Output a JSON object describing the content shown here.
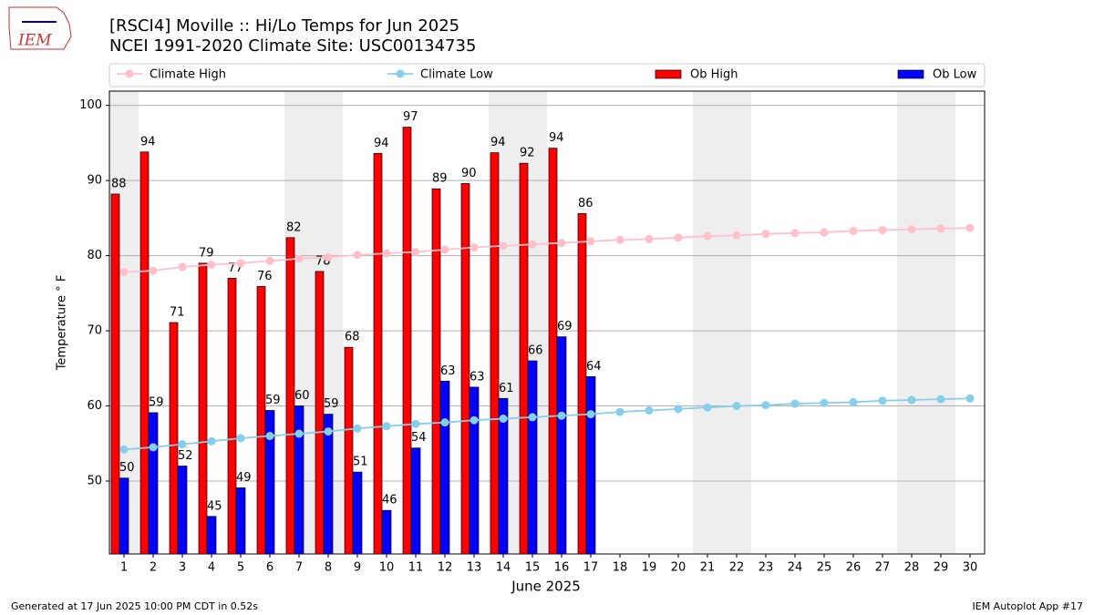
{
  "logo": "IEM",
  "footer_left": "Generated at 17 Jun 2025 10:00 PM CDT in 0.52s",
  "footer_right": "IEM Autoplot App #17",
  "chart_data": {
    "type": "bar",
    "title": "[RSCI4] Moville :: Hi/Lo Temps for Jun 2025",
    "subtitle": "NCEI 1991-2020 Climate Site: USC00134735",
    "xlabel": "June 2025",
    "ylabel": "Temperature ° F",
    "categories": [
      "1",
      "2",
      "3",
      "4",
      "5",
      "6",
      "7",
      "8",
      "9",
      "10",
      "11",
      "12",
      "13",
      "14",
      "15",
      "16",
      "17",
      "18",
      "19",
      "20",
      "21",
      "22",
      "23",
      "24",
      "25",
      "26",
      "27",
      "28",
      "29",
      "30"
    ],
    "shade": [
      1,
      7,
      8,
      14,
      15,
      21,
      22,
      28,
      29
    ],
    "series": [
      {
        "name": "Climate High",
        "type": "line",
        "color": "#ffc0cb",
        "values": [
          77.8,
          78,
          78.5,
          78.8,
          79,
          79.3,
          79.6,
          79.8,
          80.1,
          80.3,
          80.5,
          80.8,
          81.1,
          81.3,
          81.5,
          81.7,
          81.9,
          82.1,
          82.2,
          82.4,
          82.6,
          82.7,
          82.9,
          83.0,
          83.1,
          83.3,
          83.4,
          83.5,
          83.6,
          83.7
        ]
      },
      {
        "name": "Climate Low",
        "type": "line",
        "color": "#87ceeb",
        "values": [
          54.2,
          54.5,
          54.9,
          55.3,
          55.7,
          56.0,
          56.3,
          56.6,
          57.0,
          57.3,
          57.6,
          57.8,
          58.1,
          58.3,
          58.5,
          58.7,
          58.9,
          59.2,
          59.4,
          59.6,
          59.8,
          60.0,
          60.1,
          60.3,
          60.4,
          60.5,
          60.7,
          60.8,
          60.9,
          61.0
        ]
      },
      {
        "name": "Ob High",
        "type": "bar",
        "color": "#ff0000",
        "values": [
          88.2,
          93.8,
          71.1,
          79,
          77,
          75.9,
          82.4,
          77.9,
          67.8,
          93.6,
          97.1,
          88.9,
          89.6,
          93.7,
          92.3,
          94.3,
          85.6,
          null,
          null,
          null,
          null,
          null,
          null,
          null,
          null,
          null,
          null,
          null,
          null,
          null
        ],
        "value_labels": [
          "88",
          "94",
          "71",
          "79",
          "77",
          "76",
          "82",
          "78",
          "68",
          "94",
          "97",
          "89",
          "90",
          "94",
          "92",
          "94",
          "86",
          null,
          null,
          null,
          null,
          null,
          null,
          null,
          null,
          null,
          null,
          null,
          null,
          null
        ]
      },
      {
        "name": "Ob Low",
        "type": "bar",
        "color": "#0000ff",
        "values": [
          50.4,
          59.1,
          52,
          45.3,
          49.1,
          59.4,
          60,
          58.9,
          51.2,
          46.1,
          54.4,
          63.3,
          62.5,
          61,
          66,
          69.2,
          63.9,
          null,
          null,
          null,
          null,
          null,
          null,
          null,
          null,
          null,
          null,
          null,
          null,
          null
        ],
        "value_labels": [
          "50",
          "59",
          "52",
          "45",
          "49",
          "59",
          "60",
          "59",
          "51",
          "46",
          "54",
          "63",
          "63",
          "61",
          "66",
          "69",
          "64",
          null,
          null,
          null,
          null,
          null,
          null,
          null,
          null,
          null,
          null,
          null,
          null,
          null
        ]
      }
    ],
    "ylim": [
      40.3,
      101.9
    ],
    "yticks": [
      50,
      60,
      70,
      80,
      90,
      100
    ],
    "grid": true
  }
}
